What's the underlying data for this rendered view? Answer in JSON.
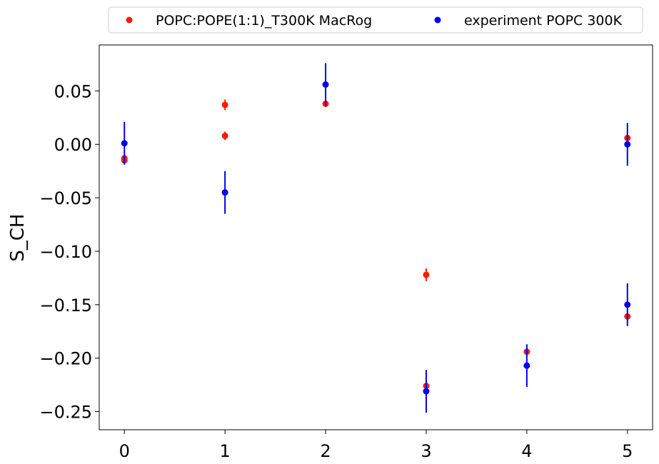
{
  "chart_data": {
    "type": "scatter",
    "title": "",
    "xlabel": "",
    "ylabel": "S_CH",
    "xlim": [
      -0.25,
      5.25
    ],
    "ylim": [
      -0.267,
      0.093
    ],
    "x_ticks": [
      0,
      1,
      2,
      3,
      4,
      5
    ],
    "x_tick_labels": [
      "0",
      "1",
      "2",
      "3",
      "4",
      "5"
    ],
    "y_ticks": [
      -0.25,
      -0.2,
      -0.15,
      -0.1,
      -0.05,
      0.0,
      0.05
    ],
    "y_tick_labels": [
      "−0.25",
      "−0.20",
      "−0.15",
      "−0.10",
      "−0.05",
      "0.00",
      "0.05"
    ],
    "grid": false,
    "legend_placement": "top, outside plot, two columns",
    "series": [
      {
        "name": "POPC:POPE(1:1)_T300K MacRog",
        "color": "#ff1a00",
        "points": [
          {
            "x": 0,
            "y": -0.013,
            "err": 0.003
          },
          {
            "x": 0,
            "y": -0.015,
            "err": 0.003
          },
          {
            "x": 1,
            "y": 0.037,
            "err": 0.005
          },
          {
            "x": 1,
            "y": 0.008,
            "err": 0.004
          },
          {
            "x": 2,
            "y": 0.038,
            "err": 0.003
          },
          {
            "x": 3,
            "y": -0.122,
            "err": 0.006
          },
          {
            "x": 3,
            "y": -0.226,
            "err": 0.003
          },
          {
            "x": 4,
            "y": -0.194,
            "err": 0.003
          },
          {
            "x": 5,
            "y": 0.006,
            "err": 0.003
          },
          {
            "x": 5,
            "y": -0.161,
            "err": 0.003
          }
        ]
      },
      {
        "name": "experiment POPC 300K",
        "color": "#0000ee",
        "points": [
          {
            "x": 0,
            "y": 0.001,
            "err": 0.02
          },
          {
            "x": 1,
            "y": -0.045,
            "err": 0.02
          },
          {
            "x": 2,
            "y": 0.056,
            "err": 0.02
          },
          {
            "x": 3,
            "y": -0.231,
            "err": 0.02
          },
          {
            "x": 4,
            "y": -0.207,
            "err": 0.02
          },
          {
            "x": 5,
            "y": 0.0,
            "err": 0.02
          },
          {
            "x": 5,
            "y": -0.15,
            "err": 0.02
          }
        ]
      }
    ]
  }
}
